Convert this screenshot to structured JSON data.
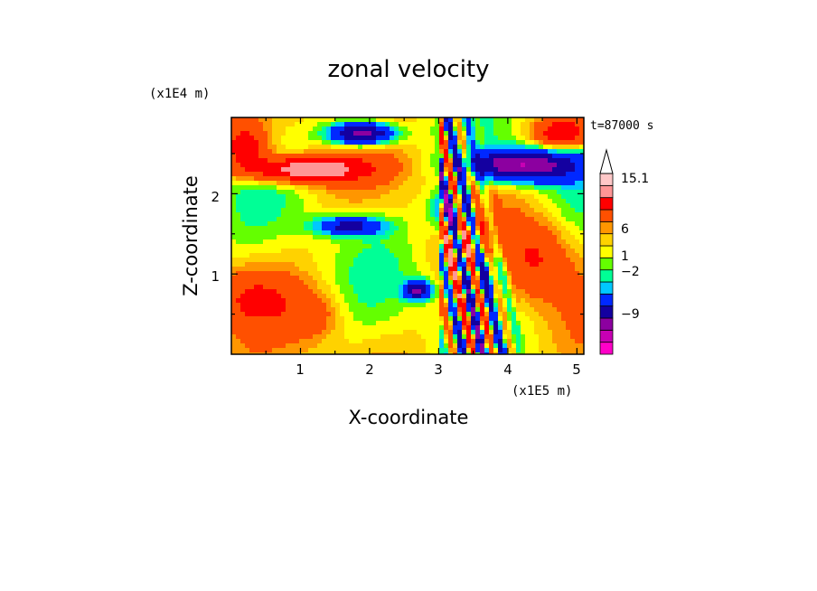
{
  "chart_data": {
    "type": "heatmap",
    "title": "zonal velocity",
    "xlabel": "X-coordinate",
    "ylabel": "Z-coordinate",
    "x_unit": "(x1E5 m)",
    "y_unit": "(x1E4 m)",
    "time_label": "t=87000 s",
    "xlim": [
      0,
      5.1
    ],
    "ylim": [
      0,
      2.95
    ],
    "x_ticks": [
      "1",
      "2",
      "3",
      "4",
      "5"
    ],
    "y_ticks": [
      "1",
      "2"
    ],
    "colorbar": {
      "levels": [
        -15,
        -12,
        -9,
        -6,
        -3,
        -2,
        -1,
        0,
        1,
        2,
        3,
        6,
        9,
        12,
        15.1
      ],
      "tick_labels": [
        "15.1",
        "6",
        "1",
        "−2",
        "−9"
      ],
      "colors": [
        "#ff00c8",
        "#c800b4",
        "#8c00a0",
        "#1400a0",
        "#0028ff",
        "#00c8ff",
        "#00ff96",
        "#64ff00",
        "#ffff00",
        "#ffd200",
        "#ff9600",
        "#ff5000",
        "#ff0000",
        "#ff9696",
        "#ffc8c8"
      ]
    }
  }
}
